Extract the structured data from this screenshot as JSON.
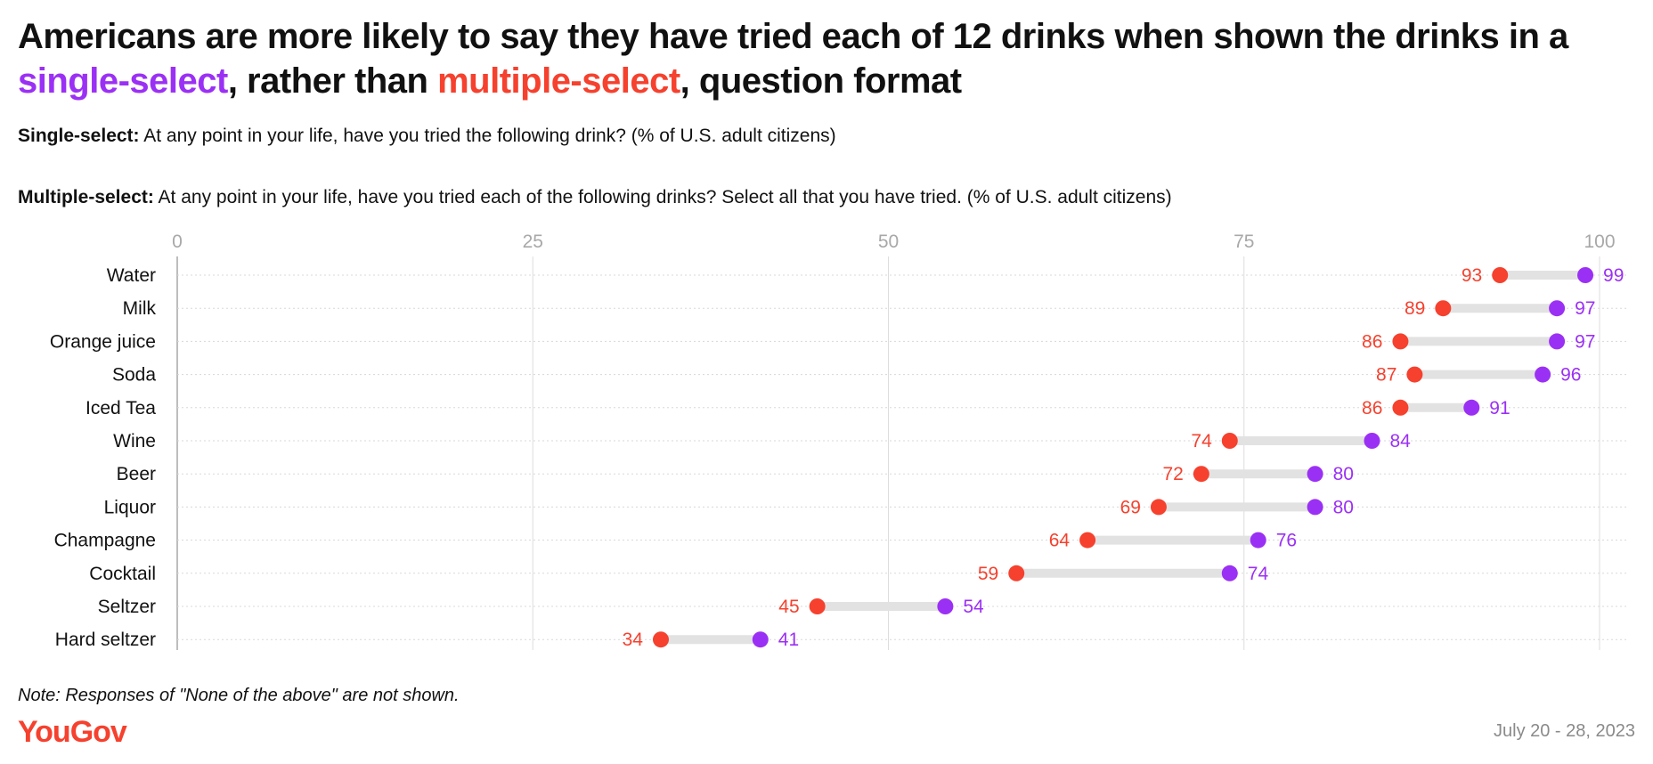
{
  "title": {
    "part1": "Americans are more likely to say they have tried each of 12 drinks when shown the drinks in a ",
    "single": "single-select",
    "part2": ", rather than ",
    "multi": "multiple-select",
    "part3": ", question format"
  },
  "questions": {
    "single_label": "Single-select:",
    "single_text": "At any point in your life, have you tried the following drink? (% of U.S. adult citizens)",
    "multi_label": "Multiple-select:",
    "multi_text": "At any point in your life, have you tried each of the following drinks? Select all that you have tried. (% of U.S. adult citizens)"
  },
  "note": "Note: Responses of \"None of the above\" are not shown.",
  "brand": "YouGov",
  "date_range": "July 20 - 28, 2023",
  "colors": {
    "single": "#9b30f5",
    "multi": "#f5412e",
    "connector": "#e2e2e2",
    "grid": "#dddddd"
  },
  "chart_data": {
    "type": "dot-range",
    "xlim": [
      0,
      100
    ],
    "xticks": [
      "0",
      "25",
      "50",
      "75",
      "100"
    ],
    "grid": true,
    "categories": [
      "Water",
      "Milk",
      "Orange juice",
      "Soda",
      "Iced Tea",
      "Wine",
      "Beer",
      "Liquor",
      "Champagne",
      "Cocktail",
      "Seltzer",
      "Hard seltzer"
    ],
    "series": [
      {
        "name": "single-select",
        "color": "#9b30f5",
        "values": [
          99,
          97,
          97,
          96,
          91,
          84,
          80,
          80,
          76,
          74,
          54,
          41
        ]
      },
      {
        "name": "multiple-select",
        "color": "#f5412e",
        "values": [
          93,
          89,
          86,
          87,
          86,
          74,
          72,
          69,
          64,
          59,
          45,
          34
        ]
      }
    ]
  }
}
